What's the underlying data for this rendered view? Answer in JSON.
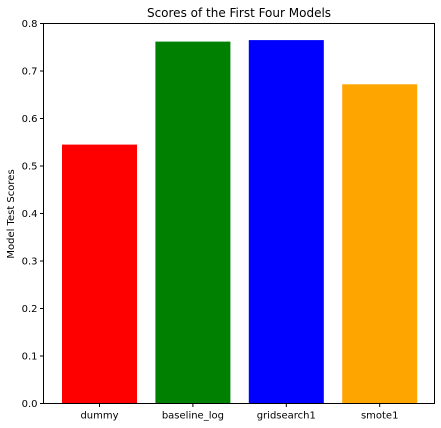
{
  "chart_data": {
    "type": "bar",
    "title": "Scores of the First Four Models",
    "xlabel": "",
    "ylabel": "Model Test Scores",
    "categories": [
      "dummy",
      "baseline_log",
      "gridsearch1",
      "smote1"
    ],
    "values": [
      0.545,
      0.762,
      0.765,
      0.672
    ],
    "colors": [
      "#ff0000",
      "#008000",
      "#0000ff",
      "#ffa500"
    ],
    "ylim": [
      0,
      0.8
    ],
    "yticks": [
      0.0,
      0.1,
      0.2,
      0.3,
      0.4,
      0.5,
      0.6,
      0.7,
      0.8
    ],
    "ytick_labels": [
      "0.0",
      "0.1",
      "0.2",
      "0.3",
      "0.4",
      "0.5",
      "0.6",
      "0.7",
      "0.8"
    ],
    "grid": false,
    "legend": "none"
  }
}
